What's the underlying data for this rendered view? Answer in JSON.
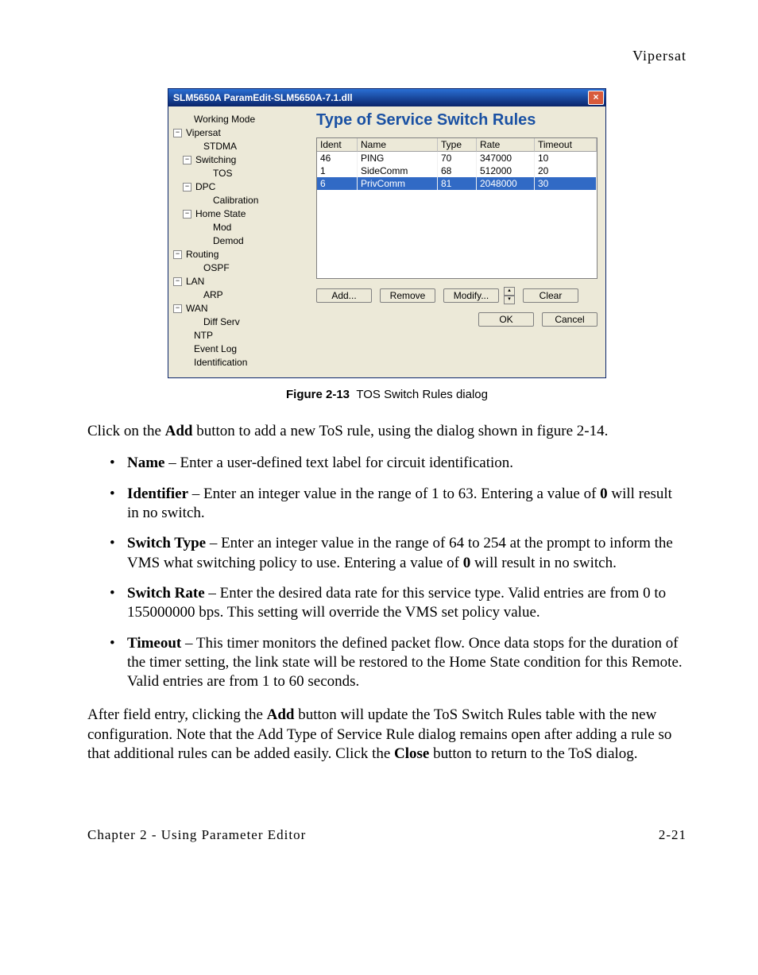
{
  "page": {
    "running_head": "Vipersat",
    "footer_left": "Chapter 2 - Using Parameter Editor",
    "footer_right": "2-21"
  },
  "dialog": {
    "title": "SLM5650A ParamEdit-SLM5650A-7.1.dll",
    "heading": "Type of Service Switch Rules",
    "columns": {
      "ident": "Ident",
      "name": "Name",
      "type": "Type",
      "rate": "Rate",
      "timeout": "Timeout"
    },
    "rows": [
      {
        "ident": "46",
        "name": "PING",
        "type": "70",
        "rate": "347000",
        "timeout": "10",
        "selected": false
      },
      {
        "ident": "1",
        "name": "SideComm",
        "type": "68",
        "rate": "512000",
        "timeout": "20",
        "selected": false
      },
      {
        "ident": "6",
        "name": "PrivComm",
        "type": "81",
        "rate": "2048000",
        "timeout": "30",
        "selected": true
      }
    ],
    "buttons": {
      "add": "Add...",
      "remove": "Remove",
      "modify": "Modify...",
      "clear": "Clear",
      "ok": "OK",
      "cancel": "Cancel"
    },
    "tree": [
      {
        "label": "Working Mode",
        "indent": 1,
        "exp": null
      },
      {
        "label": "Vipersat",
        "indent": 0,
        "exp": "-"
      },
      {
        "label": "STDMA",
        "indent": 2,
        "exp": null
      },
      {
        "label": "Switching",
        "indent": 1,
        "exp": "-"
      },
      {
        "label": "TOS",
        "indent": 3,
        "exp": null,
        "selected": true
      },
      {
        "label": "DPC",
        "indent": 1,
        "exp": "-"
      },
      {
        "label": "Calibration",
        "indent": 3,
        "exp": null
      },
      {
        "label": "Home State",
        "indent": 1,
        "exp": "-"
      },
      {
        "label": "Mod",
        "indent": 3,
        "exp": null
      },
      {
        "label": "Demod",
        "indent": 3,
        "exp": null
      },
      {
        "label": "Routing",
        "indent": 0,
        "exp": "-"
      },
      {
        "label": "OSPF",
        "indent": 2,
        "exp": null
      },
      {
        "label": "LAN",
        "indent": 0,
        "exp": "-"
      },
      {
        "label": "ARP",
        "indent": 2,
        "exp": null
      },
      {
        "label": "WAN",
        "indent": 0,
        "exp": "-"
      },
      {
        "label": "Diff Serv",
        "indent": 2,
        "exp": null
      },
      {
        "label": "NTP",
        "indent": 1,
        "exp": null
      },
      {
        "label": "Event Log",
        "indent": 1,
        "exp": null
      },
      {
        "label": "Identification",
        "indent": 1,
        "exp": null
      }
    ]
  },
  "figure": {
    "label": "Figure 2-13",
    "caption": "TOS Switch Rules dialog"
  },
  "text": {
    "intro_a": "Click on the ",
    "intro_b": "Add",
    "intro_c": " button to add a new ToS rule, using the dialog shown in figure 2-14.",
    "items": [
      {
        "term": "Name",
        "desc": " – Enter a user-defined text label for circuit identification."
      },
      {
        "term": "Identifier",
        "desc": " – Enter an integer value in the range of 1 to 63. Entering a value of ",
        "bold2": "0",
        "desc2": " will result in no switch."
      },
      {
        "term": "Switch Type",
        "desc": " – Enter an integer value in the range of 64 to 254 at the prompt to inform the VMS what switching policy to use. Entering a value of ",
        "bold2": "0",
        "desc2": " will result in no switch."
      },
      {
        "term": "Switch Rate",
        "desc": " – Enter the desired data rate for this service type. Valid entries are from 0 to 155000000 bps. This setting will override the VMS set policy value."
      },
      {
        "term": "Timeout",
        "desc": " – This timer monitors the defined packet flow. Once data stops for the duration of the timer setting, the link state will be restored to the Home State condition for this Remote. Valid entries are from 1 to 60 seconds."
      }
    ],
    "outro_a": "After field entry, clicking the ",
    "outro_b": "Add",
    "outro_c": " button will update the ToS Switch Rules table with the new configuration. Note that the Add Type of Service Rule dialog remains open after adding a rule so that additional rules can be added easily. Click the ",
    "outro_d": "Close",
    "outro_e": " button to return to the ToS dialog."
  }
}
